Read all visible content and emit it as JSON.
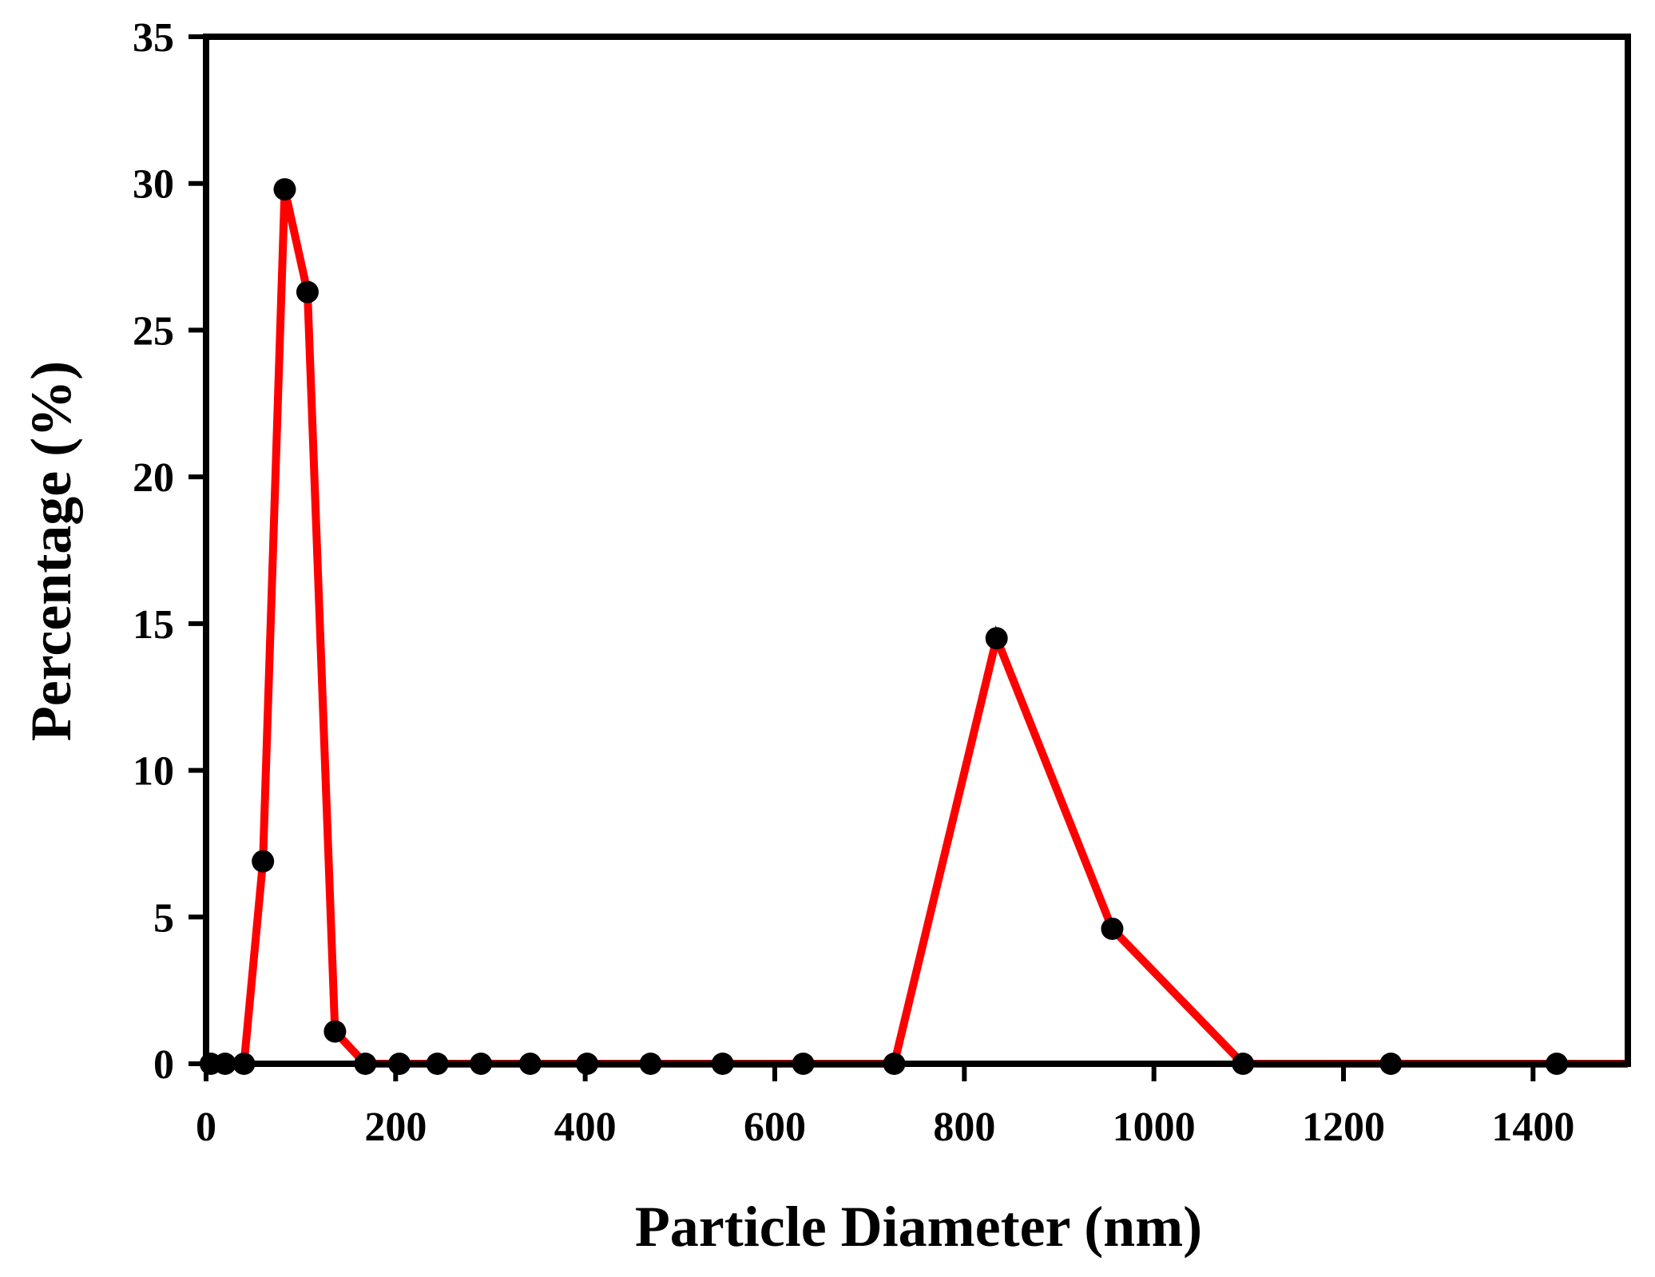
{
  "chart_data": {
    "type": "line",
    "title": "",
    "xlabel": "Particle Diameter (nm)",
    "ylabel": "Percentage (%)",
    "xlim": [
      0,
      1500
    ],
    "ylim": [
      0,
      35
    ],
    "xticks": [
      0,
      200,
      400,
      600,
      800,
      1000,
      1200,
      1400
    ],
    "yticks": [
      0,
      5,
      10,
      15,
      20,
      25,
      30,
      35
    ],
    "grid": false,
    "legend": "none",
    "series": [
      {
        "color": "#ff0000",
        "marker_color": "#000000",
        "x": [
          5,
          20,
          40,
          60,
          83,
          107,
          136,
          168,
          204,
          244,
          290,
          342,
          402,
          469,
          545,
          630,
          726,
          834,
          956,
          1094,
          1250,
          1425
        ],
        "y": [
          0,
          0,
          0,
          6.9,
          29.8,
          26.3,
          1.1,
          0,
          0,
          0,
          0,
          0,
          0,
          0,
          0,
          0,
          0,
          14.5,
          4.6,
          0,
          0,
          0
        ]
      }
    ]
  }
}
